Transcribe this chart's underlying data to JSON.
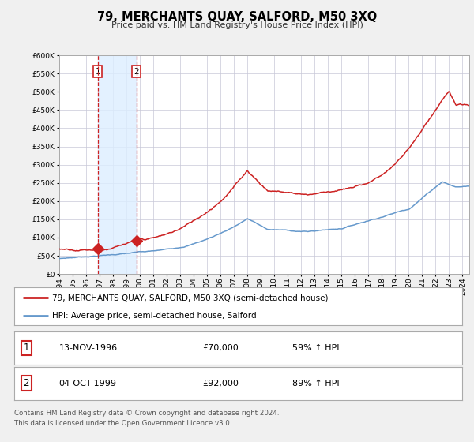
{
  "title": "79, MERCHANTS QUAY, SALFORD, M50 3XQ",
  "subtitle": "Price paid vs. HM Land Registry's House Price Index (HPI)",
  "legend_line1": "79, MERCHANTS QUAY, SALFORD, M50 3XQ (semi-detached house)",
  "legend_line2": "HPI: Average price, semi-detached house, Salford",
  "footer1": "Contains HM Land Registry data © Crown copyright and database right 2024.",
  "footer2": "This data is licensed under the Open Government Licence v3.0.",
  "transaction1_label": "1",
  "transaction1_date": "13-NOV-1996",
  "transaction1_price": "£70,000",
  "transaction1_hpi": "59% ↑ HPI",
  "transaction2_label": "2",
  "transaction2_date": "04-OCT-1999",
  "transaction2_price": "£92,000",
  "transaction2_hpi": "89% ↑ HPI",
  "sale1_year": 1996.87,
  "sale1_price": 70000,
  "sale2_year": 1999.75,
  "sale2_price": 92000,
  "hpi_color": "#6699cc",
  "price_color": "#cc2222",
  "background_color": "#f0f0f0",
  "chart_bg": "#ffffff",
  "grid_color": "#c8c8d8",
  "shade_color": "#ddeeff",
  "ymin": 0,
  "ymax": 600000,
  "xmin": 1994.0,
  "xmax": 2024.5
}
